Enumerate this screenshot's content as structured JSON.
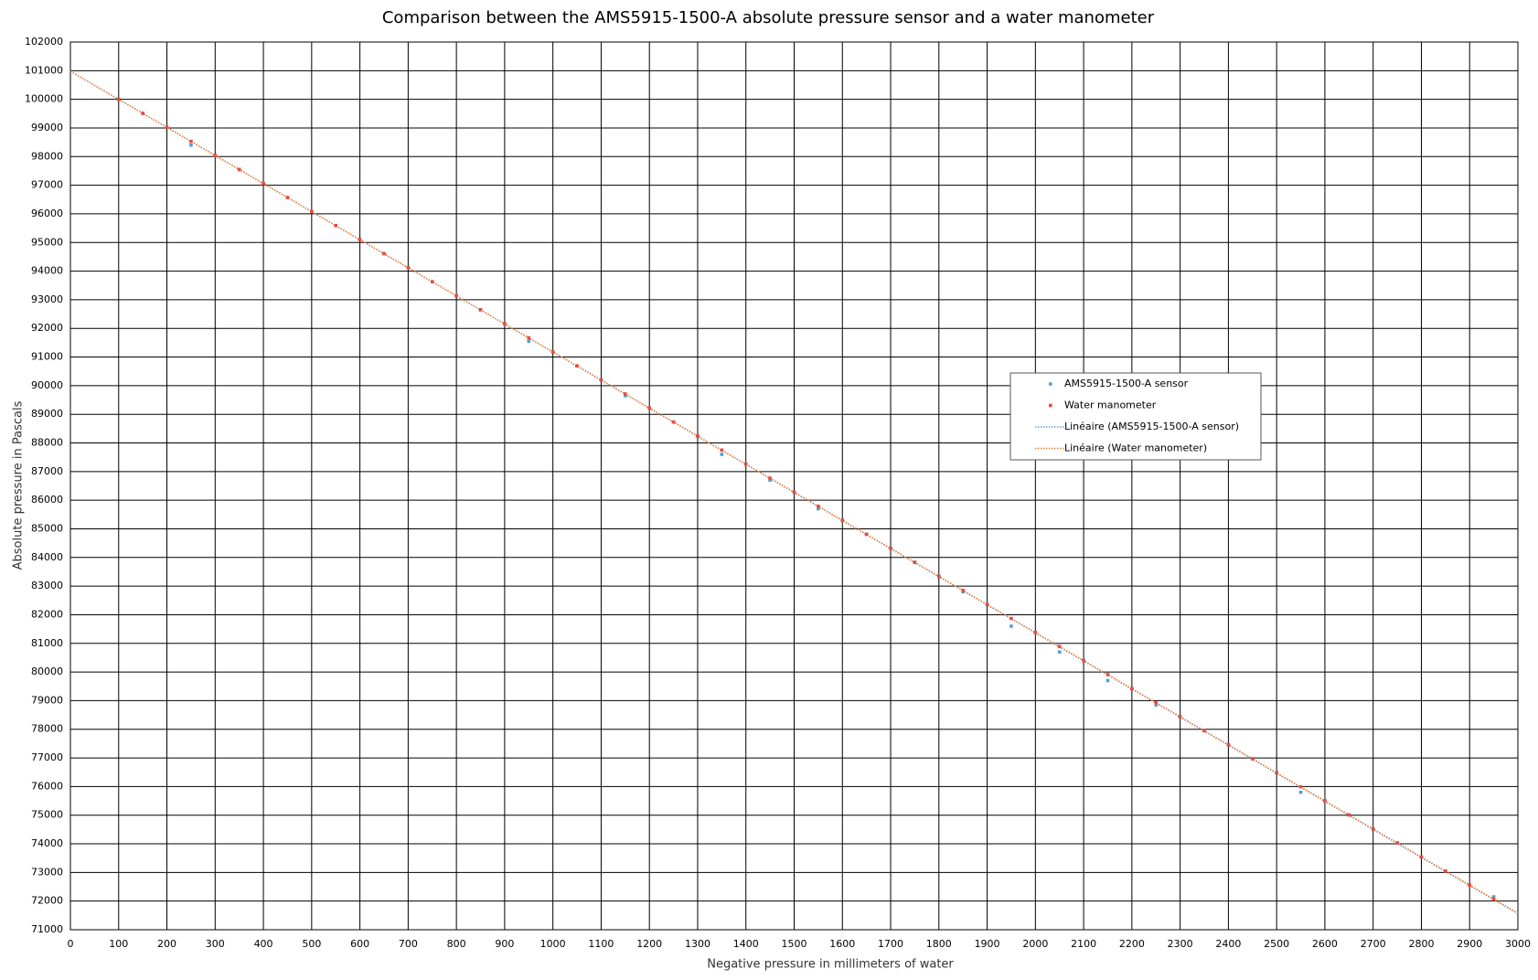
{
  "chart_data": {
    "type": "scatter",
    "title": "Comparison between the AMS5915-1500-A absolute pressure sensor and a water manometer",
    "x_label": "Negative pressure in millimeters of water",
    "y_label": "Absolute pressure in Pascals",
    "xlim": [
      0,
      3000
    ],
    "ylim": [
      71000,
      102000
    ],
    "xticks": [
      0,
      100,
      200,
      300,
      400,
      500,
      600,
      700,
      800,
      900,
      1000,
      1100,
      1200,
      1300,
      1400,
      1500,
      1600,
      1700,
      1800,
      1900,
      2000,
      2100,
      2200,
      2300,
      2400,
      2500,
      2600,
      2700,
      2800,
      2900,
      3000
    ],
    "yticks": [
      71000,
      72000,
      73000,
      74000,
      75000,
      76000,
      77000,
      78000,
      79000,
      80000,
      81000,
      82000,
      83000,
      84000,
      85000,
      86000,
      87000,
      88000,
      89000,
      90000,
      91000,
      92000,
      93000,
      94000,
      95000,
      96000,
      97000,
      98000,
      99000,
      100000,
      101000,
      102000
    ],
    "grid": true,
    "legend": "right",
    "series": [
      {
        "name": "AMS5915-1500-A sensor",
        "color": "#5b9bd5",
        "style": "marker",
        "x": [
          100,
          150,
          200,
          250,
          300,
          350,
          400,
          450,
          500,
          550,
          600,
          650,
          700,
          750,
          800,
          850,
          900,
          950,
          1000,
          1050,
          1100,
          1150,
          1200,
          1250,
          1300,
          1350,
          1400,
          1450,
          1500,
          1550,
          1600,
          1650,
          1700,
          1750,
          1800,
          1850,
          1900,
          1950,
          2000,
          2050,
          2100,
          2150,
          2200,
          2250,
          2300,
          2350,
          2400,
          2450,
          2500,
          2550,
          2600,
          2650,
          2700,
          2750,
          2800,
          2850,
          2900,
          2950
        ],
        "values": [
          100000,
          99510,
          99020,
          98400,
          98040,
          97550,
          97060,
          96570,
          96080,
          95590,
          95100,
          94610,
          94120,
          93630,
          93140,
          92650,
          92160,
          91550,
          91180,
          90690,
          90200,
          89650,
          89220,
          88730,
          88240,
          87600,
          87260,
          86700,
          86280,
          85700,
          85300,
          84810,
          84320,
          83830,
          83340,
          82800,
          82360,
          81600,
          81380,
          80700,
          80400,
          79700,
          79420,
          78850,
          78440,
          77950,
          77460,
          76970,
          76480,
          75800,
          75500,
          75010,
          74520,
          74030,
          73540,
          73050,
          72560,
          72150
        ]
      },
      {
        "name": "Water manometer",
        "color": "#e84c3d",
        "style": "marker",
        "x": [
          100,
          150,
          200,
          250,
          300,
          350,
          400,
          450,
          500,
          550,
          600,
          650,
          700,
          750,
          800,
          850,
          900,
          950,
          1000,
          1050,
          1100,
          1150,
          1200,
          1250,
          1300,
          1350,
          1400,
          1450,
          1500,
          1550,
          1600,
          1650,
          1700,
          1750,
          1800,
          1850,
          1900,
          1950,
          2000,
          2050,
          2100,
          2150,
          2200,
          2250,
          2300,
          2350,
          2400,
          2450,
          2500,
          2550,
          2600,
          2650,
          2700,
          2750,
          2800,
          2850,
          2900,
          2950
        ],
        "values": [
          100000,
          99510,
          99020,
          98530,
          98040,
          97550,
          97060,
          96570,
          96080,
          95590,
          95100,
          94610,
          94120,
          93630,
          93140,
          92650,
          92160,
          91670,
          91180,
          90690,
          90200,
          89710,
          89220,
          88730,
          88240,
          87750,
          87260,
          86770,
          86280,
          85790,
          85300,
          84810,
          84320,
          83830,
          83340,
          82850,
          82360,
          81870,
          81380,
          80890,
          80400,
          79910,
          79420,
          78930,
          78440,
          77950,
          77460,
          76970,
          76480,
          75990,
          75500,
          75010,
          74520,
          74030,
          73540,
          73050,
          72560,
          72070
        ]
      },
      {
        "name": "Linéaire (AMS5915-1500-A sensor)",
        "color": "#5b9bd5",
        "style": "dotted",
        "x": [
          0,
          3000
        ],
        "values": [
          100980,
          71560
        ]
      },
      {
        "name": "Linéaire (Water manometer)",
        "color": "#ed7d31",
        "style": "dotted",
        "x": [
          0,
          3000
        ],
        "values": [
          100980,
          71580
        ]
      }
    ]
  }
}
